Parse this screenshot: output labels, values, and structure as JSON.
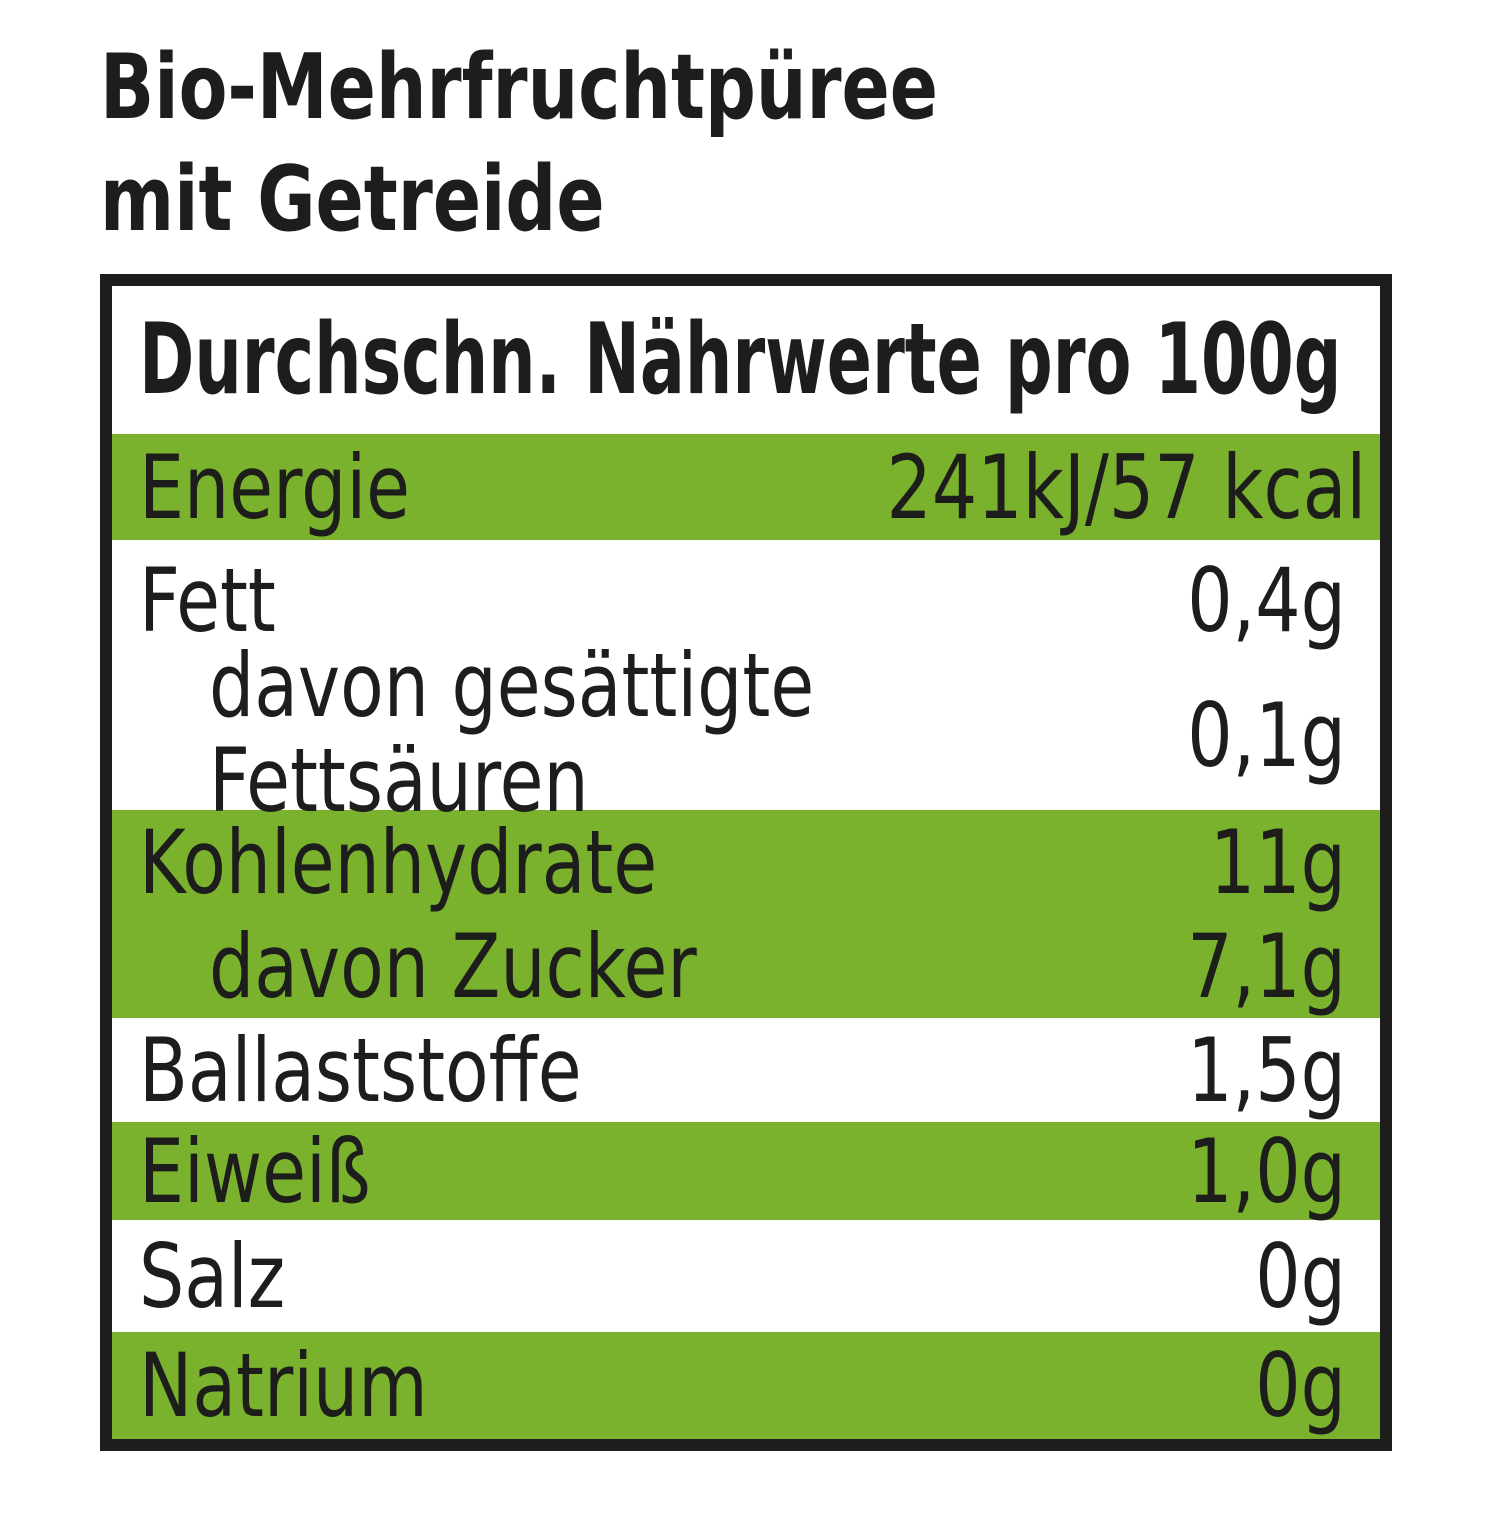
{
  "title": {
    "line1": "Bio-Mehrfruchtpüree",
    "line2": "mit Getreide"
  },
  "table": {
    "header": "Durchschn. Nährwerte pro 100g",
    "rows": [
      {
        "label": "Energie",
        "value": "241kJ/57 kcal",
        "green": true,
        "indent": false
      },
      {
        "label": "Fett",
        "value": "0,4g",
        "green": false,
        "indent": false
      },
      {
        "label": "davon gesättigte Fettsäuren",
        "value": "0,1g",
        "green": false,
        "indent": true
      },
      {
        "label": "Kohlenhydrate",
        "value": "11g",
        "green": true,
        "indent": false
      },
      {
        "label": "davon Zucker",
        "value": "7,1g",
        "green": true,
        "indent": true
      },
      {
        "label": "Ballaststoffe",
        "value": "1,5g",
        "green": false,
        "indent": false
      },
      {
        "label": "Eiweiß",
        "value": "1,0g",
        "green": true,
        "indent": false
      },
      {
        "label": "Salz",
        "value": "0g",
        "green": false,
        "indent": false
      },
      {
        "label": "Natrium",
        "value": "0g",
        "green": true,
        "indent": false
      }
    ]
  },
  "colors": {
    "green": "#7ab22e",
    "black": "#1d1d1b"
  }
}
